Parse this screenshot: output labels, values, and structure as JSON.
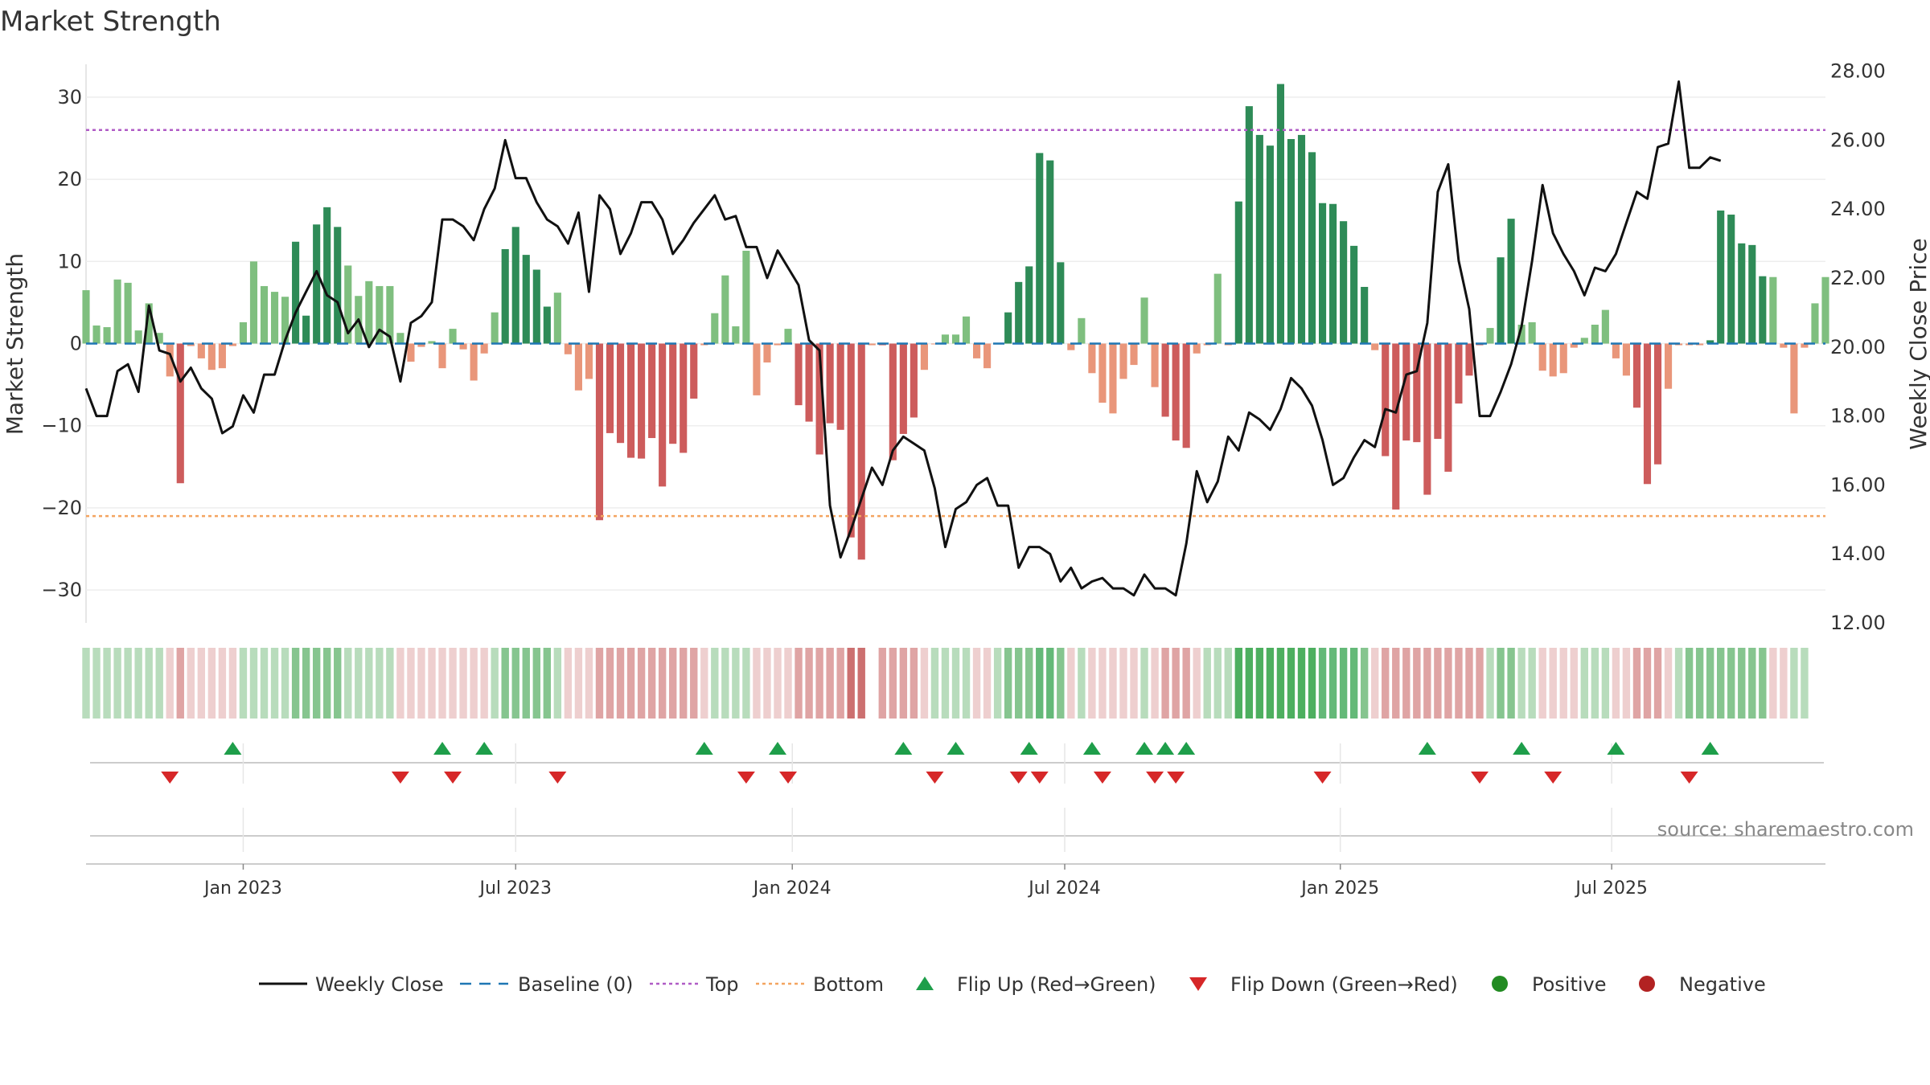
{
  "chart_data": {
    "type": "bar",
    "title": "Market Strength",
    "ylabel": "Market Strength",
    "y2label": "Weekly Close Price",
    "ylim": [
      -34,
      34
    ],
    "y2lim": [
      12,
      28.2
    ],
    "yticks": [
      "30",
      "20",
      "10",
      "0",
      "−10",
      "−20",
      "−30"
    ],
    "yticks_values": [
      30,
      20,
      10,
      0,
      -10,
      -20,
      -30
    ],
    "y2ticks": [
      "28.00",
      "26.00",
      "24.00",
      "22.00",
      "20.00",
      "18.00",
      "16.00",
      "14.00",
      "12.00"
    ],
    "y2ticks_values": [
      28,
      26,
      24,
      22,
      20,
      18,
      16,
      14,
      12
    ],
    "xticks": [
      "Jan 2023",
      "Jul 2023",
      "Jan 2024",
      "Jul 2024",
      "Jan 2025",
      "Jul 2025"
    ],
    "xticks_index": [
      15,
      41,
      67.4,
      93.4,
      119.7,
      145.6
    ],
    "top_line": 26,
    "bottom_line": -21,
    "baseline": 0,
    "source": "source: sharemaestro.com",
    "colors": {
      "strong_pos": "#2e8b57",
      "weak_pos": "#7fbf7f",
      "strong_neg": "#cd5c5c",
      "weak_neg": "#e9967a",
      "close": "#111111",
      "baseline": "#1f77b4",
      "top": "#b05cc6",
      "bottom": "#f4a460",
      "flip_up": "#1e9e4a",
      "flip_down": "#d62728",
      "positive": "#228b22",
      "negative": "#b22222"
    },
    "strength": [
      6.5,
      2.2,
      2,
      7.8,
      7.4,
      1.6,
      4.9,
      1.3,
      -4,
      -17,
      -0.3,
      -1.8,
      -3.2,
      -3,
      -0.3,
      2.6,
      10,
      7,
      6.3,
      5.7,
      12.4,
      3.4,
      14.5,
      16.6,
      14.2,
      9.5,
      5.8,
      7.6,
      7,
      7,
      1.3,
      -2.2,
      -0.4,
      0.3,
      -3,
      1.8,
      -0.7,
      -4.5,
      -1.2,
      3.8,
      11.5,
      14.2,
      10.8,
      9,
      4.5,
      6.2,
      -1.3,
      -5.7,
      -4.3,
      -21.5,
      -10.9,
      -12.1,
      -13.9,
      -14,
      -11.5,
      -17.4,
      -12.2,
      -13.3,
      -6.7,
      -0.2,
      3.7,
      8.3,
      2.1,
      11.3,
      -6.3,
      -2.3,
      -0.2,
      1.8,
      -7.5,
      -9.5,
      -13.5,
      -9.7,
      -10.5,
      -23.6,
      -26.3,
      -0.2,
      -0.2,
      -14.2,
      -11,
      -9,
      -3.2,
      -0.1,
      1.1,
      1.1,
      3.3,
      -1.8,
      -3,
      -0.1,
      3.8,
      7.5,
      9.4,
      23.2,
      22.3,
      9.9,
      -0.8,
      3.1,
      -3.6,
      -7.2,
      -8.5,
      -4.3,
      -2.6,
      5.6,
      -5.3,
      -8.9,
      -11.8,
      -12.7,
      -1.2,
      -0.2,
      8.5,
      -0.2,
      17.3,
      28.9,
      25.4,
      24.1,
      31.6,
      24.9,
      25.4,
      23.3,
      17.1,
      17,
      14.9,
      11.9,
      6.9,
      -0.8,
      -13.7,
      -20.2,
      -11.8,
      -12,
      -18.4,
      -11.6,
      -15.6,
      -7.3,
      -3.9,
      -0.2,
      1.9,
      10.5,
      15.2,
      2.3,
      2.6,
      -3.3,
      -4,
      -3.6,
      -0.5,
      0.7,
      2.3,
      4.1,
      -1.8,
      -3.9,
      -7.8,
      -17.1,
      -14.7,
      -5.5,
      -0.2,
      -0.2,
      -0.2,
      0.4,
      16.2,
      15.7,
      12.2,
      12,
      8.2,
      8.1,
      -0.5,
      -8.5,
      -0.5,
      4.9,
      8.1
    ],
    "close": [
      18.8,
      18,
      18,
      19.3,
      19.5,
      18.7,
      21.2,
      19.9,
      19.8,
      19,
      19.4,
      18.8,
      18.5,
      17.5,
      17.7,
      18.6,
      18.1,
      19.2,
      19.2,
      20.2,
      21,
      21.6,
      22.2,
      21.5,
      21.3,
      20.4,
      20.8,
      20,
      20.5,
      20.3,
      19,
      20.7,
      20.9,
      21.3,
      23.7,
      23.7,
      23.5,
      23.1,
      24,
      24.6,
      26,
      24.9,
      24.9,
      24.2,
      23.7,
      23.5,
      23,
      23.9,
      21.6,
      24.4,
      24,
      22.7,
      23.3,
      24.2,
      24.2,
      23.7,
      22.7,
      23.1,
      23.6,
      24,
      24.4,
      23.7,
      23.8,
      22.9,
      22.9,
      22,
      22.8,
      22.3,
      21.8,
      20.2,
      19.9,
      15.4,
      13.9,
      14.7,
      15.6,
      16.5,
      16,
      17,
      17.4,
      17.2,
      17,
      15.9,
      14.2,
      15.3,
      15.5,
      16,
      16.2,
      15.4,
      15.4,
      13.6,
      14.2,
      14.2,
      14,
      13.2,
      13.6,
      13,
      13.2,
      13.3,
      13,
      13,
      12.8,
      13.4,
      13,
      13,
      12.8,
      14.3,
      16.4,
      15.5,
      16.1,
      17.4,
      17,
      18.1,
      17.9,
      17.6,
      18.2,
      19.1,
      18.8,
      18.3,
      17.3,
      16,
      16.2,
      16.8,
      17.3,
      17.1,
      18.2,
      18.1,
      19.2,
      19.3,
      20.7,
      24.5,
      25.3,
      22.5,
      21.1,
      18,
      18,
      18.7,
      19.5,
      20.6,
      22.5,
      24.7,
      23.3,
      22.7,
      22.2,
      21.5,
      22.3,
      22.2,
      22.7,
      23.6,
      24.5,
      24.3,
      25.8,
      25.9,
      27.7,
      25.2,
      25.2,
      25.5,
      25.4
    ],
    "strength_bar": [
      1,
      1,
      1,
      1,
      1,
      1,
      1,
      1,
      -1,
      -2,
      -1,
      -1,
      -1,
      -1,
      -1,
      1,
      1,
      1,
      1,
      1,
      2,
      2,
      2,
      2,
      2,
      1,
      1,
      1,
      1,
      1,
      -1,
      -1,
      -1,
      -1,
      -1,
      -1,
      -1,
      -1,
      -1,
      1,
      2,
      2,
      2,
      2,
      2,
      1,
      -1,
      -1,
      -1,
      -2,
      -2,
      -2,
      -2,
      -2,
      -2,
      -2,
      -2,
      -2,
      -2,
      -1,
      1,
      1,
      1,
      1,
      -1,
      -1,
      -1,
      -1,
      -2,
      -2,
      -2,
      -2,
      -2,
      -3,
      -3,
      0,
      -2,
      -2,
      -2,
      -2,
      -1,
      1,
      1,
      1,
      1,
      -1,
      -1,
      1,
      2,
      2,
      2,
      3,
      3,
      2,
      -1,
      1,
      -1,
      -1,
      -1,
      -1,
      -1,
      1,
      -1,
      -2,
      -2,
      -2,
      -1,
      1,
      1,
      1,
      4,
      4,
      4,
      4,
      4,
      4,
      4,
      4,
      3,
      3,
      3,
      3,
      2,
      -1,
      -2,
      -2,
      -2,
      -2,
      -2,
      -2,
      -2,
      -2,
      -2,
      -2,
      1,
      2,
      2,
      1,
      1,
      -1,
      -1,
      -1,
      -1,
      1,
      1,
      1,
      -1,
      -1,
      -2,
      -2,
      -2,
      -1,
      1,
      2,
      2,
      2,
      2,
      2,
      2,
      2,
      2,
      -1,
      -1,
      1,
      1
    ],
    "flip_up_index": [
      14,
      34,
      38,
      59,
      66,
      78,
      83,
      90,
      96,
      101,
      103,
      105,
      128,
      137,
      146,
      155
    ],
    "flip_down_index": [
      8,
      30,
      35,
      45,
      63,
      67,
      81,
      89,
      91,
      97,
      102,
      104,
      118,
      133,
      140,
      153
    ],
    "legend": [
      {
        "key": "close",
        "label": "Weekly Close"
      },
      {
        "key": "baseline",
        "label": "Baseline (0)"
      },
      {
        "key": "top",
        "label": "Top"
      },
      {
        "key": "bottom",
        "label": "Bottom"
      },
      {
        "key": "flip_up",
        "label": "Flip Up (Red→Green)"
      },
      {
        "key": "flip_down",
        "label": "Flip Down (Green→Red)"
      },
      {
        "key": "positive",
        "label": "Positive"
      },
      {
        "key": "negative",
        "label": "Negative"
      }
    ]
  }
}
